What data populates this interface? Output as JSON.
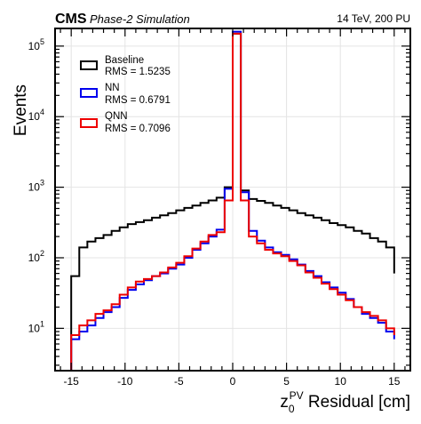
{
  "header": {
    "experiment": "CMS",
    "status": "Phase-2 Simulation",
    "energy_pu": "14 TeV, 200 PU"
  },
  "chart_data": {
    "type": "line",
    "style": "step-histogram",
    "title": "",
    "xlabel_main": "z",
    "xlabel_sub": "0",
    "xlabel_sup": "PV",
    "xlabel_suffix": " Residual [cm]",
    "ylabel": "Events",
    "xlim": [
      -16.5,
      16.5
    ],
    "ylim_log10": [
      0.4,
      5.25
    ],
    "yscale": "log",
    "grid": true,
    "legend_position": "top-left",
    "x_ticks": [
      -15,
      -10,
      -5,
      0,
      5,
      10,
      15
    ],
    "x_tick_labels": [
      "-15",
      "-10",
      "-5",
      "0",
      "5",
      "10",
      "15"
    ],
    "y_ticks_log10": [
      1,
      2,
      3,
      4,
      5
    ],
    "y_tick_base": "10",
    "y_tick_exponents": [
      "1",
      "2",
      "3",
      "4",
      "5"
    ],
    "bin_edges": [
      -15,
      -14.25,
      -13.5,
      -12.75,
      -12,
      -11.25,
      -10.5,
      -9.75,
      -9,
      -8.25,
      -7.5,
      -6.75,
      -6,
      -5.25,
      -4.5,
      -3.75,
      -3,
      -2.25,
      -1.5,
      -0.75,
      0,
      0.75,
      1.5,
      2.25,
      3,
      3.75,
      4.5,
      5.25,
      6,
      6.75,
      7.5,
      8.25,
      9,
      9.75,
      10.5,
      11.25,
      12,
      12.75,
      13.5,
      14.25,
      15
    ],
    "series": [
      {
        "name": "Baseline",
        "rms": "RMS = 1.5235",
        "color": "#000000",
        "values": [
          55,
          140,
          170,
          190,
          210,
          240,
          270,
          300,
          320,
          340,
          370,
          400,
          430,
          470,
          510,
          550,
          600,
          650,
          710,
          1000,
          150000,
          900,
          680,
          640,
          600,
          550,
          510,
          470,
          430,
          400,
          370,
          340,
          310,
          290,
          270,
          240,
          220,
          190,
          170,
          140,
          60
        ]
      },
      {
        "name": "NN",
        "rms": "RMS = 0.6791",
        "color": "#0000ee",
        "values": [
          7,
          9,
          11,
          14,
          17,
          20,
          27,
          35,
          42,
          48,
          55,
          60,
          70,
          80,
          100,
          130,
          160,
          200,
          250,
          950,
          160000,
          850,
          240,
          175,
          140,
          120,
          110,
          95,
          80,
          65,
          55,
          45,
          38,
          32,
          26,
          20,
          16,
          14,
          12,
          9,
          7
        ]
      },
      {
        "name": "QNN",
        "rms": "RMS = 0.7096",
        "color": "#ee0000",
        "values": [
          8,
          11,
          13,
          16,
          18,
          22,
          30,
          38,
          46,
          50,
          55,
          62,
          73,
          85,
          105,
          135,
          170,
          210,
          230,
          650,
          150000,
          650,
          200,
          160,
          130,
          115,
          105,
          90,
          78,
          62,
          52,
          43,
          36,
          30,
          25,
          20,
          17,
          15,
          13,
          10,
          8
        ]
      }
    ]
  }
}
